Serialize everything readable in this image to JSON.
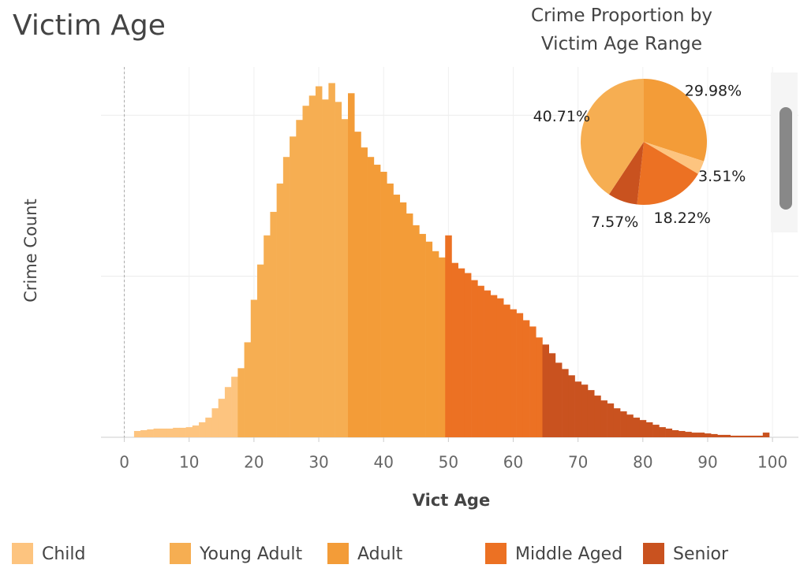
{
  "chart_data": [
    {
      "type": "bar",
      "title": "Victim Age",
      "x_label": "Vict Age",
      "y_label": "Crime Count",
      "xlim": [
        -3.6,
        104
      ],
      "xticks": [
        0,
        10,
        20,
        30,
        40,
        50,
        60,
        70,
        80,
        90,
        100
      ],
      "ylim": [
        0,
        23000
      ],
      "yticks": [
        0,
        10000,
        20000
      ],
      "grid": true,
      "series": [
        {
          "name": "Child",
          "color": "#fdc47f",
          "x": [
            2,
            3,
            4,
            5,
            6,
            7,
            8,
            9,
            10,
            11,
            12,
            13,
            14,
            15,
            16,
            17
          ],
          "values": [
            390,
            440,
            490,
            540,
            540,
            540,
            590,
            590,
            630,
            730,
            930,
            1220,
            1800,
            2390,
            3120,
            3760
          ]
        },
        {
          "name": "Young Adult",
          "color": "#f6ae52",
          "x": [
            18,
            19,
            20,
            21,
            22,
            23,
            24,
            25,
            26,
            27,
            28,
            29,
            30,
            31,
            32,
            33,
            34
          ],
          "values": [
            4290,
            5900,
            8540,
            10730,
            12540,
            14000,
            15760,
            17410,
            18680,
            19710,
            20590,
            21220,
            21800,
            20980,
            22000,
            20830,
            19760
          ]
        },
        {
          "name": "Adult",
          "color": "#f39c38",
          "x": [
            35,
            36,
            37,
            38,
            39,
            40,
            41,
            42,
            43,
            44,
            45,
            46,
            47,
            48,
            49
          ],
          "values": [
            21370,
            18980,
            18000,
            17410,
            16930,
            16490,
            15760,
            15070,
            14590,
            13900,
            13170,
            12630,
            12150,
            11560,
            11170
          ]
        },
        {
          "name": "Middle Aged",
          "color": "#ec7123",
          "x": [
            50,
            51,
            52,
            53,
            54,
            55,
            56,
            57,
            58,
            59,
            60,
            61,
            62,
            63,
            64
          ],
          "values": [
            12540,
            10830,
            10490,
            10200,
            9760,
            9410,
            9120,
            8830,
            8630,
            8240,
            7950,
            7710,
            7270,
            6880,
            6200
          ]
        },
        {
          "name": "Senior",
          "color": "#c9521f",
          "x": [
            65,
            66,
            67,
            68,
            69,
            70,
            71,
            72,
            73,
            74,
            75,
            76,
            77,
            78,
            79,
            80,
            81,
            82,
            83,
            84,
            85,
            86,
            87,
            88,
            89,
            90,
            91,
            92,
            93,
            94,
            95,
            96,
            97,
            98,
            99
          ],
          "values": [
            5760,
            5220,
            4630,
            4240,
            3850,
            3460,
            3270,
            2930,
            2590,
            2290,
            2100,
            1800,
            1610,
            1410,
            1220,
            1070,
            930,
            780,
            630,
            540,
            440,
            390,
            340,
            290,
            290,
            240,
            200,
            150,
            150,
            100,
            100,
            100,
            100,
            100,
            290
          ]
        }
      ]
    },
    {
      "type": "pie",
      "title": "Crime Proportion by Victim Age Range",
      "values": [
        29.98,
        3.51,
        18.22,
        7.57,
        40.71
      ],
      "value_labels": [
        "29.98%",
        "3.51%",
        "18.22%",
        "7.57%",
        "40.71%"
      ],
      "colors": [
        "#f39c38",
        "#fdc47f",
        "#ec7123",
        "#c9521f",
        "#f6ae52"
      ]
    }
  ]
}
